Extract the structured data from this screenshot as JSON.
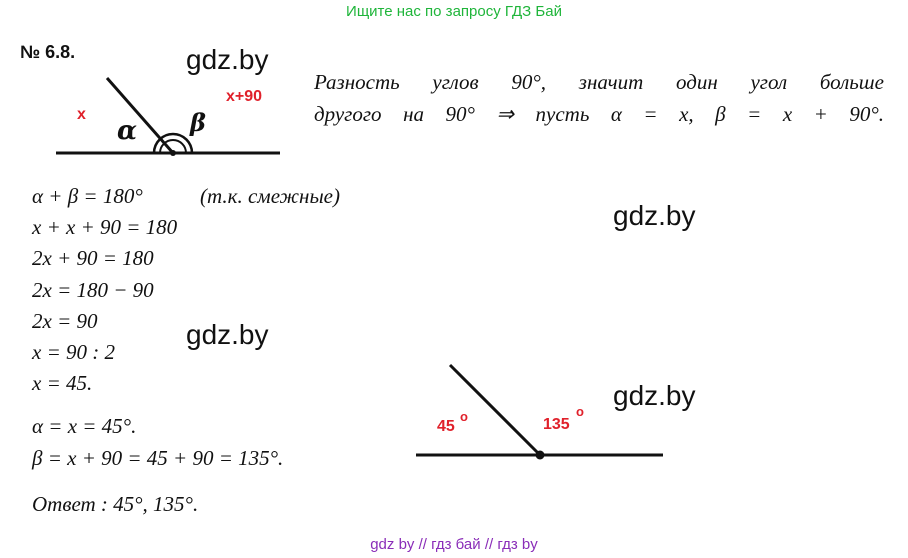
{
  "banner_top": "Ищите нас по запросу ГДЗ Бай",
  "banner_bottom": "gdz by  //  гдз бай  //  гдз by",
  "problem_number": "№ 6.8.",
  "watermark": "gdz.by",
  "diagram1": {
    "label_x": "x",
    "label_x90": "x+90",
    "label_alpha": "α",
    "label_beta": "β"
  },
  "statement": {
    "line1": "Разность углов 90°, значит один угол больше",
    "line2": "другого на 90° ⇒ пусть α = x, β = x + 90°."
  },
  "solution": [
    "α + β = 180°",
    "x + x + 90 = 180",
    "2x + 90 = 180",
    "2x = 180 − 90",
    "2x = 90",
    "x = 90 : 2",
    "x = 45."
  ],
  "solution_note": "(т.к.   смежные)",
  "results": [
    "α = x = 45°.",
    "β = x + 90 = 45 + 90 = 135°."
  ],
  "answer": "Ответ :   45°,   135°.",
  "diagram2": {
    "angle_left": "45",
    "angle_right": "135",
    "degree_mark": "o"
  }
}
